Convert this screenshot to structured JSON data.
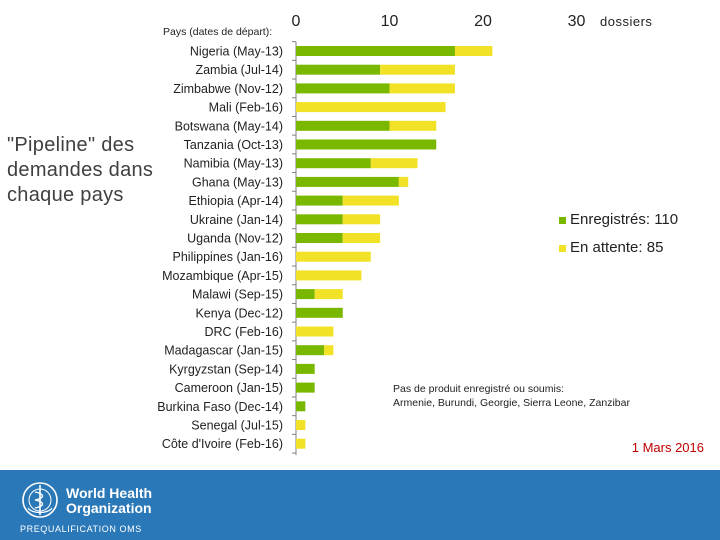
{
  "side_title": "\"Pipeline\" des demandes dans chaque pays",
  "footer": {
    "org_name_line1": "World Health",
    "org_name_line2": "Organization",
    "program": "PREQUALIFICATION OMS"
  },
  "note": {
    "line1": "Pas de produit enregistré ou soumis:",
    "line2": "Armenie, Burundi, Georgie, Sierra Leone, Zanzibar"
  },
  "date": "1 Mars 2016",
  "colors": {
    "registered": "#7ab800",
    "pending": "#f2e227",
    "footer": "#2b78b8",
    "date": "#c00000"
  },
  "chart_data": {
    "type": "bar",
    "orientation": "horizontal",
    "stacked": true,
    "header_label": "Pays (dates de départ):",
    "unit_label": "dossiers",
    "xlim": [
      0,
      30
    ],
    "ticks": [
      "0",
      "10",
      "20",
      "30"
    ],
    "tick_values": [
      0,
      10,
      20,
      30
    ],
    "grid": false,
    "legend_position": "right",
    "categories": [
      "Nigeria (May-13)",
      "Zambia (Jul-14)",
      "Zimbabwe (Nov-12)",
      "Mali (Feb-16)",
      "Botswana (May-14)",
      "Tanzania (Oct-13)",
      "Namibia (May-13)",
      "Ghana (May-13)",
      "Ethiopia (Apr-14)",
      "Ukraine (Jan-14)",
      "Uganda (Nov-12)",
      "Philippines (Jan-16)",
      "Mozambique (Apr-15)",
      "Malawi (Sep-15)",
      "Kenya (Dec-12)",
      "DRC (Feb-16)",
      "Madagascar (Jan-15)",
      "Kyrgyzstan (Sep-14)",
      "Cameroon (Jan-15)",
      "Burkina Faso (Dec-14)",
      "Senegal (Jul-15)",
      "Côte d'Ivoire (Feb-16)"
    ],
    "series": [
      {
        "name": "Enregistrés",
        "legend_label": "Enregistrés: 110",
        "values": [
          17,
          9,
          10,
          0,
          10,
          15,
          8,
          11,
          5,
          5,
          5,
          0,
          0,
          2,
          5,
          0,
          3,
          2,
          2,
          1,
          0,
          0
        ]
      },
      {
        "name": "En attente",
        "legend_label": "En attente: 85",
        "values": [
          4,
          8,
          7,
          16,
          5,
          0,
          5,
          1,
          6,
          4,
          4,
          8,
          7,
          3,
          0,
          4,
          1,
          0,
          0,
          0,
          1,
          1
        ]
      }
    ]
  }
}
